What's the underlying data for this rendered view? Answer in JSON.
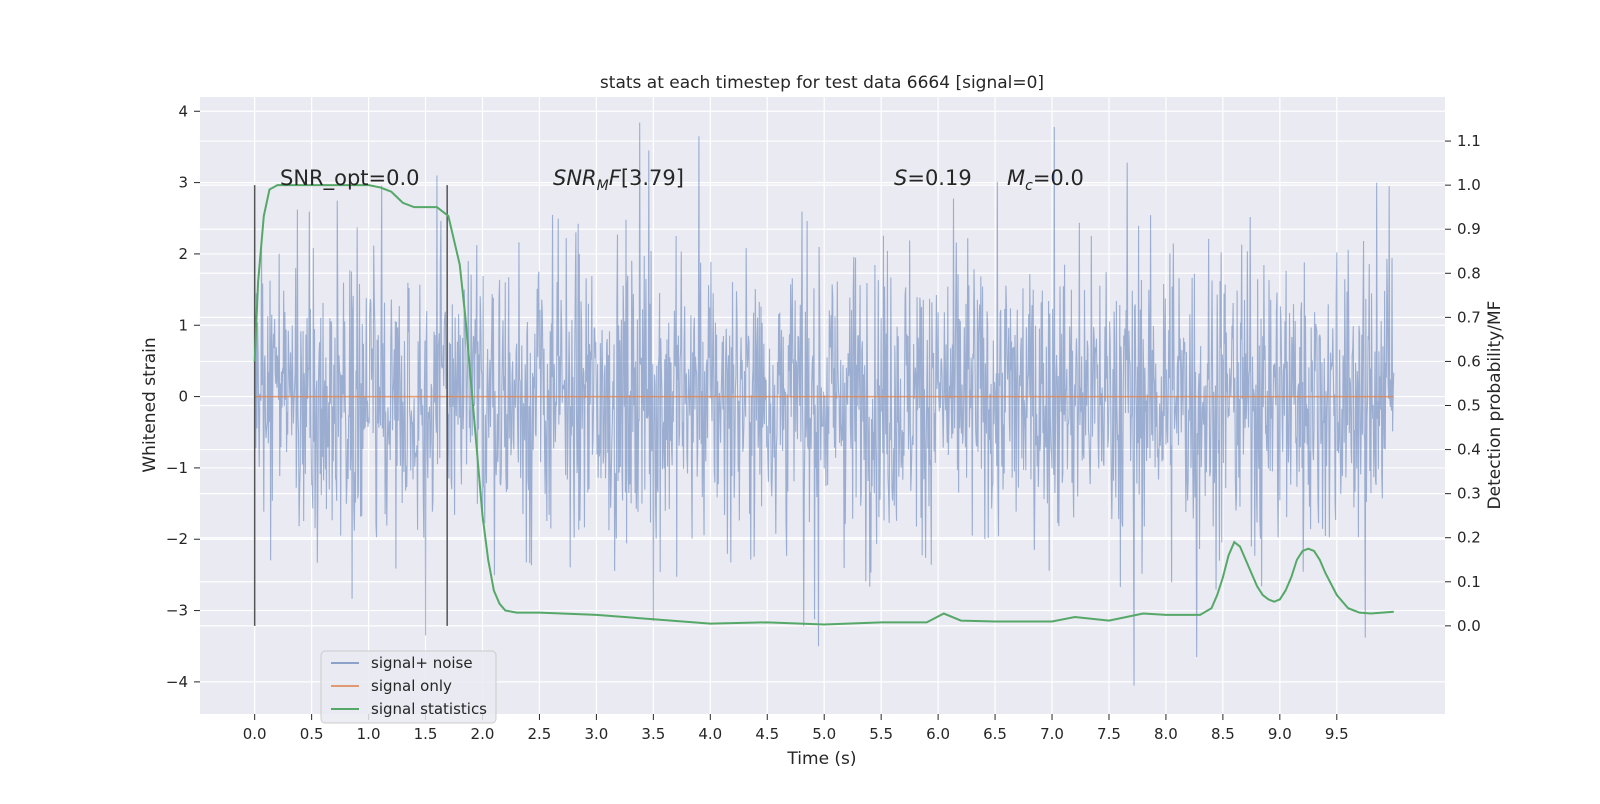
{
  "chart_data": {
    "type": "line",
    "title": "stats at each timestep for test data 6664 [signal=0]",
    "xlabel": "Time (s)",
    "ylabel": "Whitened strain",
    "y2label": "Detection probability/MF",
    "xlim": [
      -0.48,
      10.45
    ],
    "ylim": [
      -4.45,
      4.2
    ],
    "y2lim": [
      -0.2,
      1.2
    ],
    "x_ticks": [
      "0.0",
      "0.5",
      "1.0",
      "1.5",
      "2.0",
      "2.5",
      "3.0",
      "3.5",
      "4.0",
      "4.5",
      "5.0",
      "5.5",
      "6.0",
      "6.5",
      "7.0",
      "7.5",
      "8.0",
      "8.5",
      "9.0",
      "9.5"
    ],
    "y_ticks": [
      "−4",
      "−3",
      "−2",
      "−1",
      "0",
      "1",
      "2",
      "3",
      "4"
    ],
    "y2_ticks": [
      "0.0",
      "0.1",
      "0.2",
      "0.3",
      "0.4",
      "0.5",
      "0.6",
      "0.7",
      "0.8",
      "0.9",
      "1.0",
      "1.1"
    ],
    "grid": true,
    "legend_position": "lower-left",
    "colors": {
      "background": "#eaeaf2",
      "grid": "#ffffff",
      "noise": "#4c72b0",
      "signal": "#dd8452",
      "stats": "#55a868",
      "markers": "#555555"
    },
    "annotations": {
      "snr_opt": "SNR_opt=0.0",
      "snr_mf": "[3.79]",
      "s_value": "=0.19",
      "mc_value": "=0.0"
    },
    "marker_lines": [
      0.0,
      1.69
    ],
    "series": [
      {
        "name": "signal+ noise",
        "x_range": [
          0.0,
          10.0
        ],
        "summary": {
          "mean": 0.0,
          "std": 1.0,
          "min": -4.05,
          "max": 3.84
        },
        "peaks": [
          {
            "x": 0.06,
            "y": 2.2
          },
          {
            "x": 1.6,
            "y": 3.1
          },
          {
            "x": 3.38,
            "y": 3.84
          },
          {
            "x": 3.46,
            "y": 3.45
          },
          {
            "x": 3.9,
            "y": 3.65
          },
          {
            "x": 7.02,
            "y": 3.78
          },
          {
            "x": 7.66,
            "y": 3.28
          },
          {
            "x": 9.85,
            "y": 3.0
          },
          {
            "x": 9.96,
            "y": 2.95
          }
        ],
        "troughs": [
          {
            "x": 1.5,
            "y": -3.35
          },
          {
            "x": 3.5,
            "y": -3.15
          },
          {
            "x": 4.82,
            "y": -3.22
          },
          {
            "x": 4.95,
            "y": -3.5
          },
          {
            "x": 7.72,
            "y": -4.05
          },
          {
            "x": 8.27,
            "y": -3.65
          },
          {
            "x": 9.75,
            "y": -3.38
          }
        ]
      },
      {
        "name": "signal only",
        "x": [
          0.0,
          10.0
        ],
        "y": [
          0.0,
          0.0
        ]
      },
      {
        "name": "signal statistics",
        "axis": "right",
        "x": [
          0.0,
          0.03,
          0.08,
          0.13,
          0.2,
          0.3,
          0.5,
          0.8,
          1.0,
          1.1,
          1.2,
          1.3,
          1.4,
          1.5,
          1.6,
          1.7,
          1.8,
          1.85,
          1.9,
          1.95,
          2.0,
          2.05,
          2.1,
          2.15,
          2.2,
          2.3,
          2.5,
          3.0,
          3.5,
          4.0,
          4.5,
          5.0,
          5.5,
          5.9,
          6.05,
          6.2,
          6.5,
          7.0,
          7.2,
          7.5,
          7.8,
          8.0,
          8.3,
          8.4,
          8.45,
          8.5,
          8.55,
          8.6,
          8.65,
          8.7,
          8.75,
          8.8,
          8.85,
          8.9,
          8.95,
          9.0,
          9.05,
          9.1,
          9.15,
          9.2,
          9.25,
          9.3,
          9.35,
          9.4,
          9.5,
          9.6,
          9.7,
          9.8,
          9.9,
          10.0
        ],
        "y": [
          0.6,
          0.78,
          0.93,
          0.99,
          1.0,
          1.0,
          1.0,
          1.0,
          1.0,
          0.995,
          0.985,
          0.96,
          0.95,
          0.95,
          0.95,
          0.93,
          0.82,
          0.7,
          0.55,
          0.4,
          0.25,
          0.15,
          0.08,
          0.05,
          0.035,
          0.03,
          0.03,
          0.025,
          0.015,
          0.005,
          0.008,
          0.003,
          0.008,
          0.008,
          0.028,
          0.012,
          0.01,
          0.01,
          0.02,
          0.012,
          0.028,
          0.025,
          0.025,
          0.04,
          0.07,
          0.11,
          0.16,
          0.19,
          0.18,
          0.15,
          0.12,
          0.09,
          0.07,
          0.06,
          0.055,
          0.06,
          0.08,
          0.11,
          0.15,
          0.17,
          0.175,
          0.17,
          0.15,
          0.12,
          0.07,
          0.04,
          0.03,
          0.028,
          0.03,
          0.032
        ]
      }
    ]
  }
}
